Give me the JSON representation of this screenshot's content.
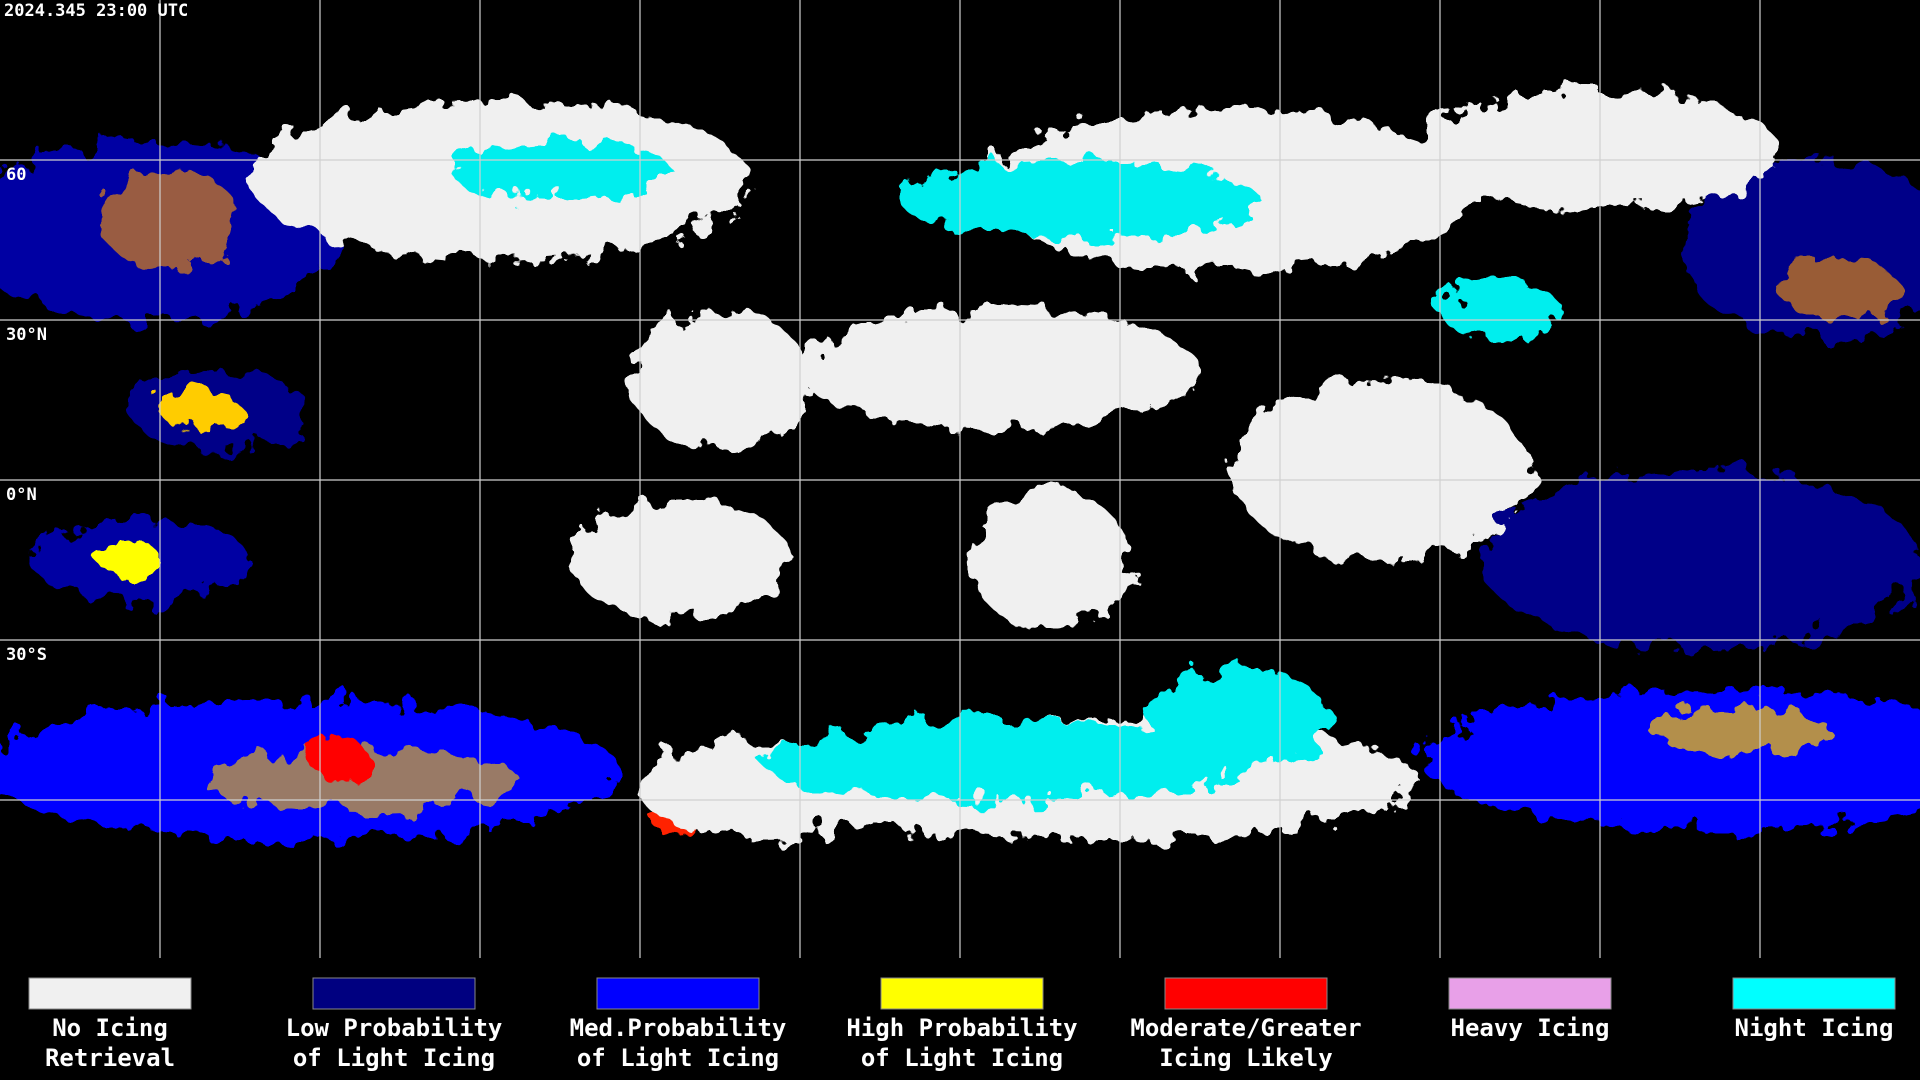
{
  "header": {
    "timestamp": "2024.345 23:00 UTC"
  },
  "map": {
    "latitude_labels": [
      "60",
      "30°N",
      "0°N",
      "30°S"
    ]
  },
  "legend": {
    "items": [
      {
        "lines": [
          "No Icing",
          "Retrieval"
        ],
        "color": "#f0f0f0"
      },
      {
        "lines": [
          "Low Probability",
          "of Light Icing"
        ],
        "color": "#000080"
      },
      {
        "lines": [
          "Med.Probability",
          "of Light Icing"
        ],
        "color": "#0000ff"
      },
      {
        "lines": [
          "High Probability",
          "of Light Icing"
        ],
        "color": "#ffff00"
      },
      {
        "lines": [
          "Moderate/Greater",
          "Icing Likely"
        ],
        "color": "#ff0000"
      },
      {
        "lines": [
          "Heavy Icing"
        ],
        "color": "#e8a0e8"
      },
      {
        "lines": [
          "Night Icing"
        ],
        "color": "#00ffff"
      }
    ]
  }
}
